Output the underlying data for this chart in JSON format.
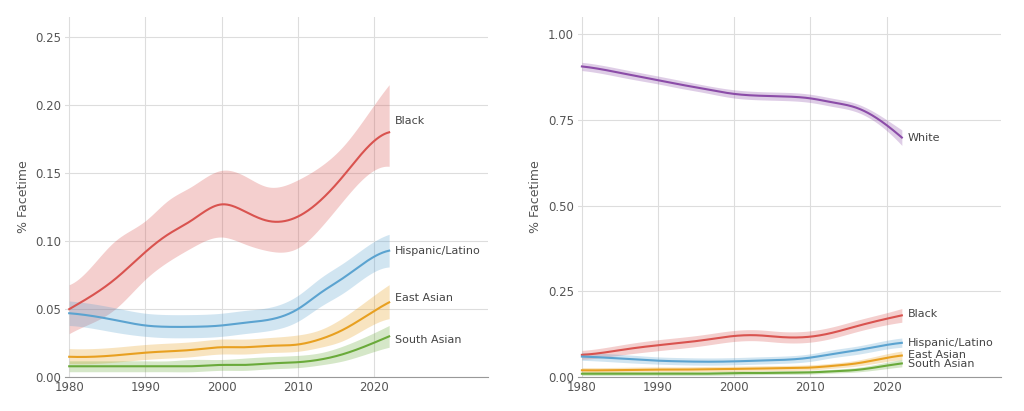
{
  "years": [
    1980,
    1983,
    1986,
    1990,
    1993,
    1996,
    2000,
    2003,
    2006,
    2010,
    2013,
    2016,
    2019,
    2022
  ],
  "left": {
    "black": {
      "y": [
        0.05,
        0.06,
        0.072,
        0.092,
        0.105,
        0.115,
        0.127,
        0.122,
        0.115,
        0.118,
        0.13,
        0.148,
        0.168,
        0.18
      ],
      "lo": [
        0.032,
        0.04,
        0.05,
        0.072,
        0.085,
        0.095,
        0.103,
        0.098,
        0.093,
        0.095,
        0.11,
        0.13,
        0.148,
        0.155
      ],
      "hi": [
        0.068,
        0.082,
        0.1,
        0.115,
        0.13,
        0.14,
        0.152,
        0.148,
        0.14,
        0.145,
        0.155,
        0.17,
        0.192,
        0.215
      ]
    },
    "hispanic": {
      "y": [
        0.047,
        0.045,
        0.042,
        0.038,
        0.037,
        0.037,
        0.038,
        0.04,
        0.042,
        0.05,
        0.062,
        0.073,
        0.085,
        0.093
      ],
      "lo": [
        0.038,
        0.036,
        0.033,
        0.03,
        0.029,
        0.029,
        0.03,
        0.032,
        0.034,
        0.041,
        0.052,
        0.062,
        0.074,
        0.081
      ],
      "hi": [
        0.056,
        0.054,
        0.051,
        0.047,
        0.046,
        0.046,
        0.047,
        0.049,
        0.051,
        0.06,
        0.073,
        0.084,
        0.096,
        0.105
      ]
    },
    "east_asian": {
      "y": [
        0.015,
        0.015,
        0.016,
        0.018,
        0.019,
        0.02,
        0.022,
        0.022,
        0.023,
        0.024,
        0.028,
        0.035,
        0.045,
        0.055
      ],
      "lo": [
        0.01,
        0.01,
        0.011,
        0.013,
        0.014,
        0.015,
        0.017,
        0.017,
        0.018,
        0.019,
        0.022,
        0.027,
        0.036,
        0.043
      ],
      "hi": [
        0.021,
        0.021,
        0.022,
        0.024,
        0.025,
        0.026,
        0.028,
        0.028,
        0.029,
        0.031,
        0.035,
        0.044,
        0.056,
        0.068
      ]
    },
    "south_asian": {
      "y": [
        0.008,
        0.008,
        0.008,
        0.008,
        0.008,
        0.008,
        0.009,
        0.009,
        0.01,
        0.011,
        0.013,
        0.017,
        0.023,
        0.03
      ],
      "lo": [
        0.004,
        0.004,
        0.004,
        0.004,
        0.004,
        0.004,
        0.005,
        0.005,
        0.006,
        0.007,
        0.009,
        0.012,
        0.017,
        0.022
      ],
      "hi": [
        0.012,
        0.012,
        0.012,
        0.012,
        0.012,
        0.013,
        0.013,
        0.014,
        0.015,
        0.016,
        0.018,
        0.023,
        0.03,
        0.038
      ]
    }
  },
  "right": {
    "white": {
      "y": [
        0.905,
        0.895,
        0.882,
        0.865,
        0.852,
        0.84,
        0.825,
        0.82,
        0.818,
        0.812,
        0.8,
        0.785,
        0.75,
        0.698
      ],
      "lo": [
        0.893,
        0.883,
        0.87,
        0.854,
        0.841,
        0.829,
        0.813,
        0.808,
        0.806,
        0.8,
        0.788,
        0.773,
        0.736,
        0.675
      ],
      "hi": [
        0.917,
        0.907,
        0.894,
        0.877,
        0.864,
        0.851,
        0.837,
        0.832,
        0.83,
        0.824,
        0.812,
        0.797,
        0.764,
        0.72
      ]
    },
    "black": {
      "y": [
        0.065,
        0.072,
        0.082,
        0.093,
        0.1,
        0.108,
        0.12,
        0.122,
        0.117,
        0.118,
        0.13,
        0.148,
        0.165,
        0.18
      ],
      "lo": [
        0.052,
        0.058,
        0.067,
        0.077,
        0.084,
        0.092,
        0.104,
        0.106,
        0.101,
        0.102,
        0.114,
        0.132,
        0.148,
        0.16
      ],
      "hi": [
        0.078,
        0.086,
        0.097,
        0.109,
        0.116,
        0.124,
        0.136,
        0.138,
        0.133,
        0.135,
        0.147,
        0.165,
        0.182,
        0.2
      ]
    },
    "hispanic": {
      "y": [
        0.06,
        0.057,
        0.053,
        0.048,
        0.046,
        0.045,
        0.046,
        0.048,
        0.05,
        0.057,
        0.068,
        0.078,
        0.09,
        0.1
      ],
      "lo": [
        0.049,
        0.046,
        0.042,
        0.038,
        0.036,
        0.035,
        0.036,
        0.038,
        0.04,
        0.046,
        0.057,
        0.066,
        0.078,
        0.087
      ],
      "hi": [
        0.072,
        0.069,
        0.065,
        0.059,
        0.057,
        0.056,
        0.057,
        0.059,
        0.061,
        0.068,
        0.08,
        0.09,
        0.103,
        0.114
      ]
    },
    "east_asian": {
      "y": [
        0.02,
        0.02,
        0.021,
        0.022,
        0.022,
        0.023,
        0.024,
        0.025,
        0.026,
        0.028,
        0.033,
        0.04,
        0.052,
        0.063
      ],
      "lo": [
        0.013,
        0.013,
        0.014,
        0.015,
        0.015,
        0.016,
        0.017,
        0.018,
        0.019,
        0.021,
        0.026,
        0.032,
        0.042,
        0.051
      ],
      "hi": [
        0.028,
        0.028,
        0.029,
        0.03,
        0.03,
        0.031,
        0.032,
        0.033,
        0.034,
        0.036,
        0.041,
        0.049,
        0.063,
        0.076
      ]
    },
    "south_asian": {
      "y": [
        0.01,
        0.01,
        0.01,
        0.01,
        0.01,
        0.01,
        0.012,
        0.012,
        0.013,
        0.014,
        0.017,
        0.021,
        0.03,
        0.04
      ],
      "lo": [
        0.005,
        0.005,
        0.005,
        0.005,
        0.005,
        0.005,
        0.006,
        0.007,
        0.008,
        0.009,
        0.012,
        0.015,
        0.022,
        0.03
      ],
      "hi": [
        0.016,
        0.016,
        0.016,
        0.016,
        0.016,
        0.016,
        0.018,
        0.018,
        0.019,
        0.02,
        0.023,
        0.028,
        0.039,
        0.052
      ]
    }
  },
  "colors": {
    "black": "#d9534f",
    "hispanic": "#5ba3d0",
    "east_asian": "#e8a020",
    "south_asian": "#6aaa3a",
    "white": "#8B4CA8"
  },
  "left_ylim": [
    0.0,
    0.265
  ],
  "left_yticks": [
    0.0,
    0.05,
    0.1,
    0.15,
    0.2,
    0.25
  ],
  "right_ylim": [
    0.0,
    1.05
  ],
  "right_yticks": [
    0.0,
    0.25,
    0.5,
    0.75,
    1.0
  ],
  "xlabel_years": [
    1980,
    1990,
    2000,
    2010,
    2020
  ],
  "ylabel": "% Facetime",
  "bg_color": "#ffffff",
  "grid_color": "#dddddd",
  "left_annotations": {
    "black": {
      "label": "Black",
      "yoffset": 0.008
    },
    "hispanic": {
      "label": "Hispanic/Latino",
      "yoffset": 0.0
    },
    "east_asian": {
      "label": "East Asian",
      "yoffset": 0.003
    },
    "south_asian": {
      "label": "South Asian",
      "yoffset": -0.003
    }
  },
  "right_annotations": {
    "white": {
      "label": "White",
      "yoffset": 0.0
    },
    "black": {
      "label": "Black",
      "yoffset": 0.005
    },
    "hispanic": {
      "label": "Hispanic/Latino",
      "yoffset": 0.0
    },
    "east_asian": {
      "label": "East Asian",
      "yoffset": 0.003
    },
    "south_asian": {
      "label": "South Asian",
      "yoffset": -0.003
    }
  }
}
